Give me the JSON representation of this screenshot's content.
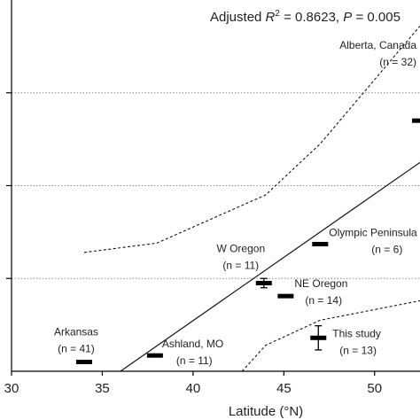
{
  "chart_data": {
    "type": "scatter",
    "xlabel": "Latitude (°N)",
    "x_tick_labels": [
      "30",
      "35",
      "40",
      "45",
      "50"
    ],
    "xlim": [
      30,
      52.5
    ],
    "ylim": [
      0,
      4
    ],
    "grid": "horizontal-dotted",
    "annotation": {
      "prefix": "Adjusted ",
      "r": "R",
      "sup": "2",
      "mid": " = 0.8623, ",
      "p": "P",
      "suffix": " = 0.005"
    },
    "points": [
      {
        "x": 34.0,
        "y": 0.1,
        "err": 0.0,
        "name": "Arkansas",
        "n": "(n = 41)"
      },
      {
        "x": 37.9,
        "y": 0.17,
        "err": 0.0,
        "name": "Ashland, MO",
        "n": "(n = 11)"
      },
      {
        "x": 43.9,
        "y": 0.95,
        "err": 0.05,
        "name": "W Oregon",
        "n": "(n = 11)"
      },
      {
        "x": 45.1,
        "y": 0.81,
        "err": 0.0,
        "name": "NE Oregon",
        "n": "(n = 14)"
      },
      {
        "x": 47.0,
        "y": 1.37,
        "err": 0.0,
        "name": "Olympic Peninsula",
        "n": "(n = 6)"
      },
      {
        "x": 46.9,
        "y": 0.36,
        "err": 0.13,
        "name": "This study",
        "n": "(n = 13)"
      },
      {
        "x": 52.5,
        "y": 2.7,
        "err": 0.0,
        "name": "Alberta, Canada",
        "n": "(n = 32)"
      }
    ],
    "regression_line": [
      [
        36.0,
        0.0
      ],
      [
        52.5,
        2.25
      ]
    ],
    "upper_band": [
      [
        34,
        1.28
      ],
      [
        38,
        1.38
      ],
      [
        44,
        1.9
      ],
      [
        47,
        2.45
      ],
      [
        52.5,
        3.72
      ]
    ],
    "lower_band": [
      [
        42.7,
        0.0
      ],
      [
        44,
        0.28
      ],
      [
        47,
        0.55
      ],
      [
        52.5,
        0.76
      ]
    ]
  }
}
